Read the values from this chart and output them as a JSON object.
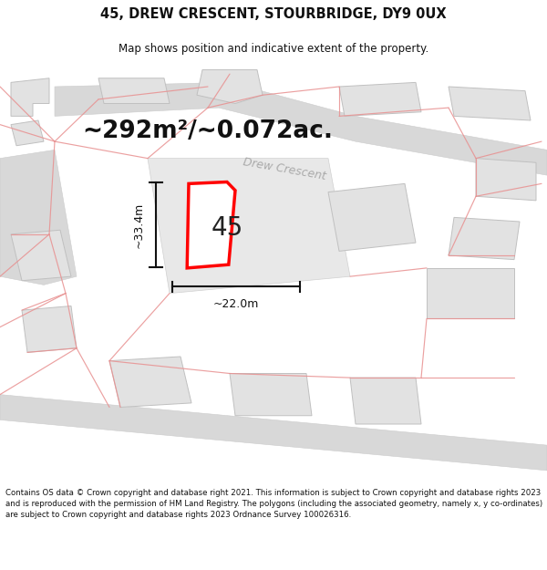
{
  "title": "45, DREW CRESCENT, STOURBRIDGE, DY9 0UX",
  "subtitle": "Map shows position and indicative extent of the property.",
  "area_label": "~292m²/~0.072ac.",
  "number_label": "45",
  "dim_height": "~33.4m",
  "dim_width": "~22.0m",
  "street_label": "Drew Crescent",
  "footer": "Contains OS data © Crown copyright and database right 2021. This information is subject to Crown copyright and database rights 2023 and is reproduced with the permission of HM Land Registry. The polygons (including the associated geometry, namely x, y co-ordinates) are subject to Crown copyright and database rights 2023 Ordnance Survey 100026316.",
  "map_bg": "#efefef",
  "road_fill": "#d8d8d8",
  "building_fill": "#e2e2e2",
  "building_edge": "#c0c0c0",
  "road_line_color": "#e89090",
  "highlight_fill": "#ffffff",
  "highlight_edge": "#ff0000",
  "title_fontsize": 10.5,
  "subtitle_fontsize": 8.5,
  "area_fontsize": 19,
  "number_fontsize": 20,
  "dim_fontsize": 9,
  "street_fontsize": 9,
  "footer_fontsize": 6.2
}
